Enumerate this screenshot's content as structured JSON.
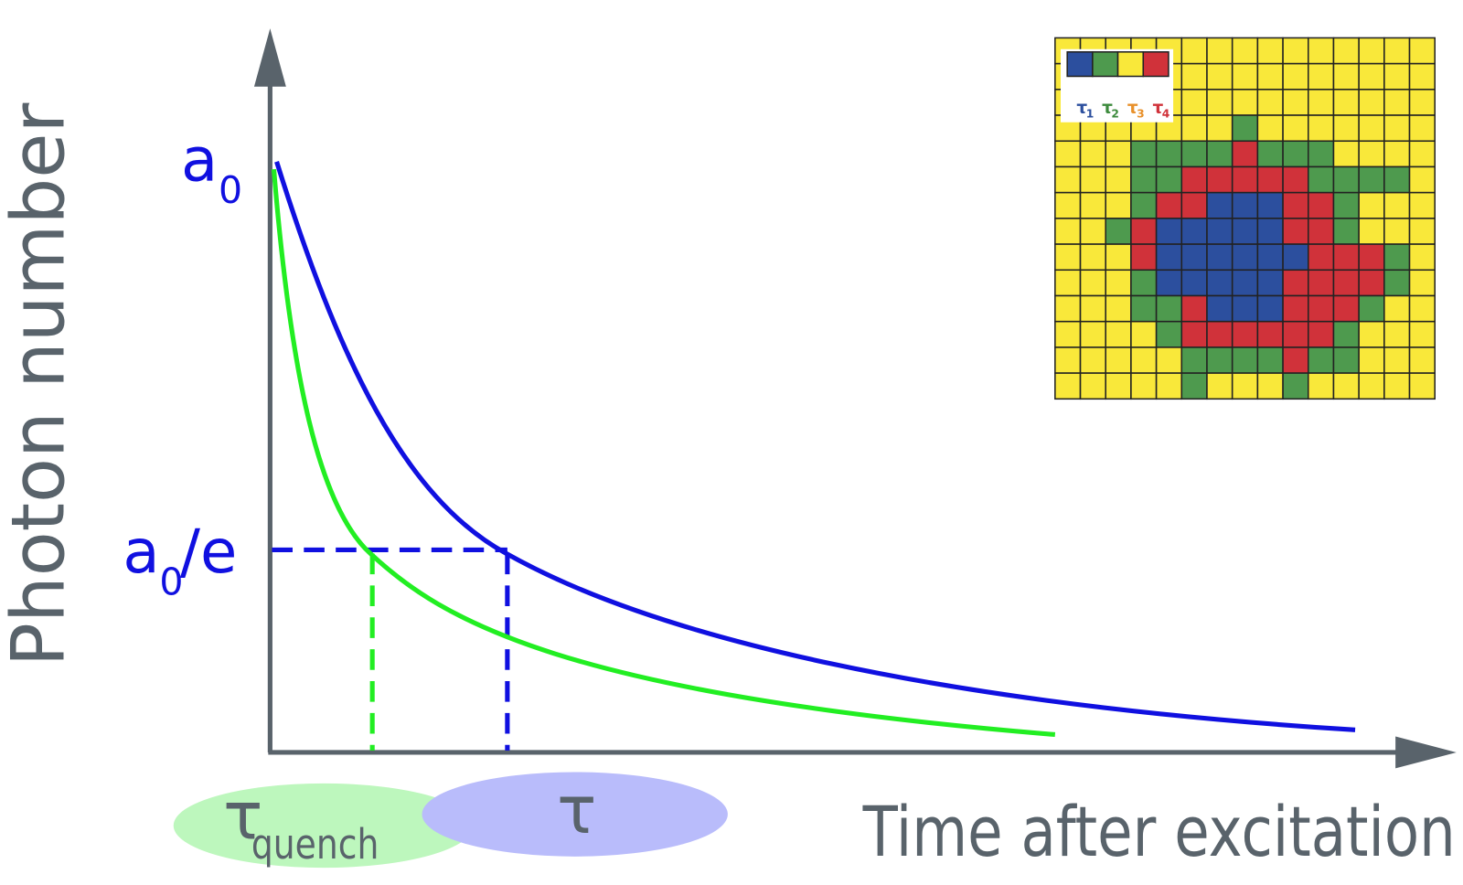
{
  "diagram": {
    "y_axis_label": "Photon number",
    "x_axis_label": "Time after excitation",
    "a0_label": {
      "base": "a",
      "sub": "0"
    },
    "a0_over_e_label": {
      "base": "a",
      "sub": "0",
      "rest": "/e"
    },
    "tau_quench_label": {
      "base": "τ",
      "sub": "quench"
    },
    "tau_label": "τ",
    "inset_legend": [
      {
        "base": "τ",
        "sub": "1"
      },
      {
        "base": "τ",
        "sub": "2"
      },
      {
        "base": "τ",
        "sub": "3"
      },
      {
        "base": "τ",
        "sub": "4"
      }
    ]
  }
}
